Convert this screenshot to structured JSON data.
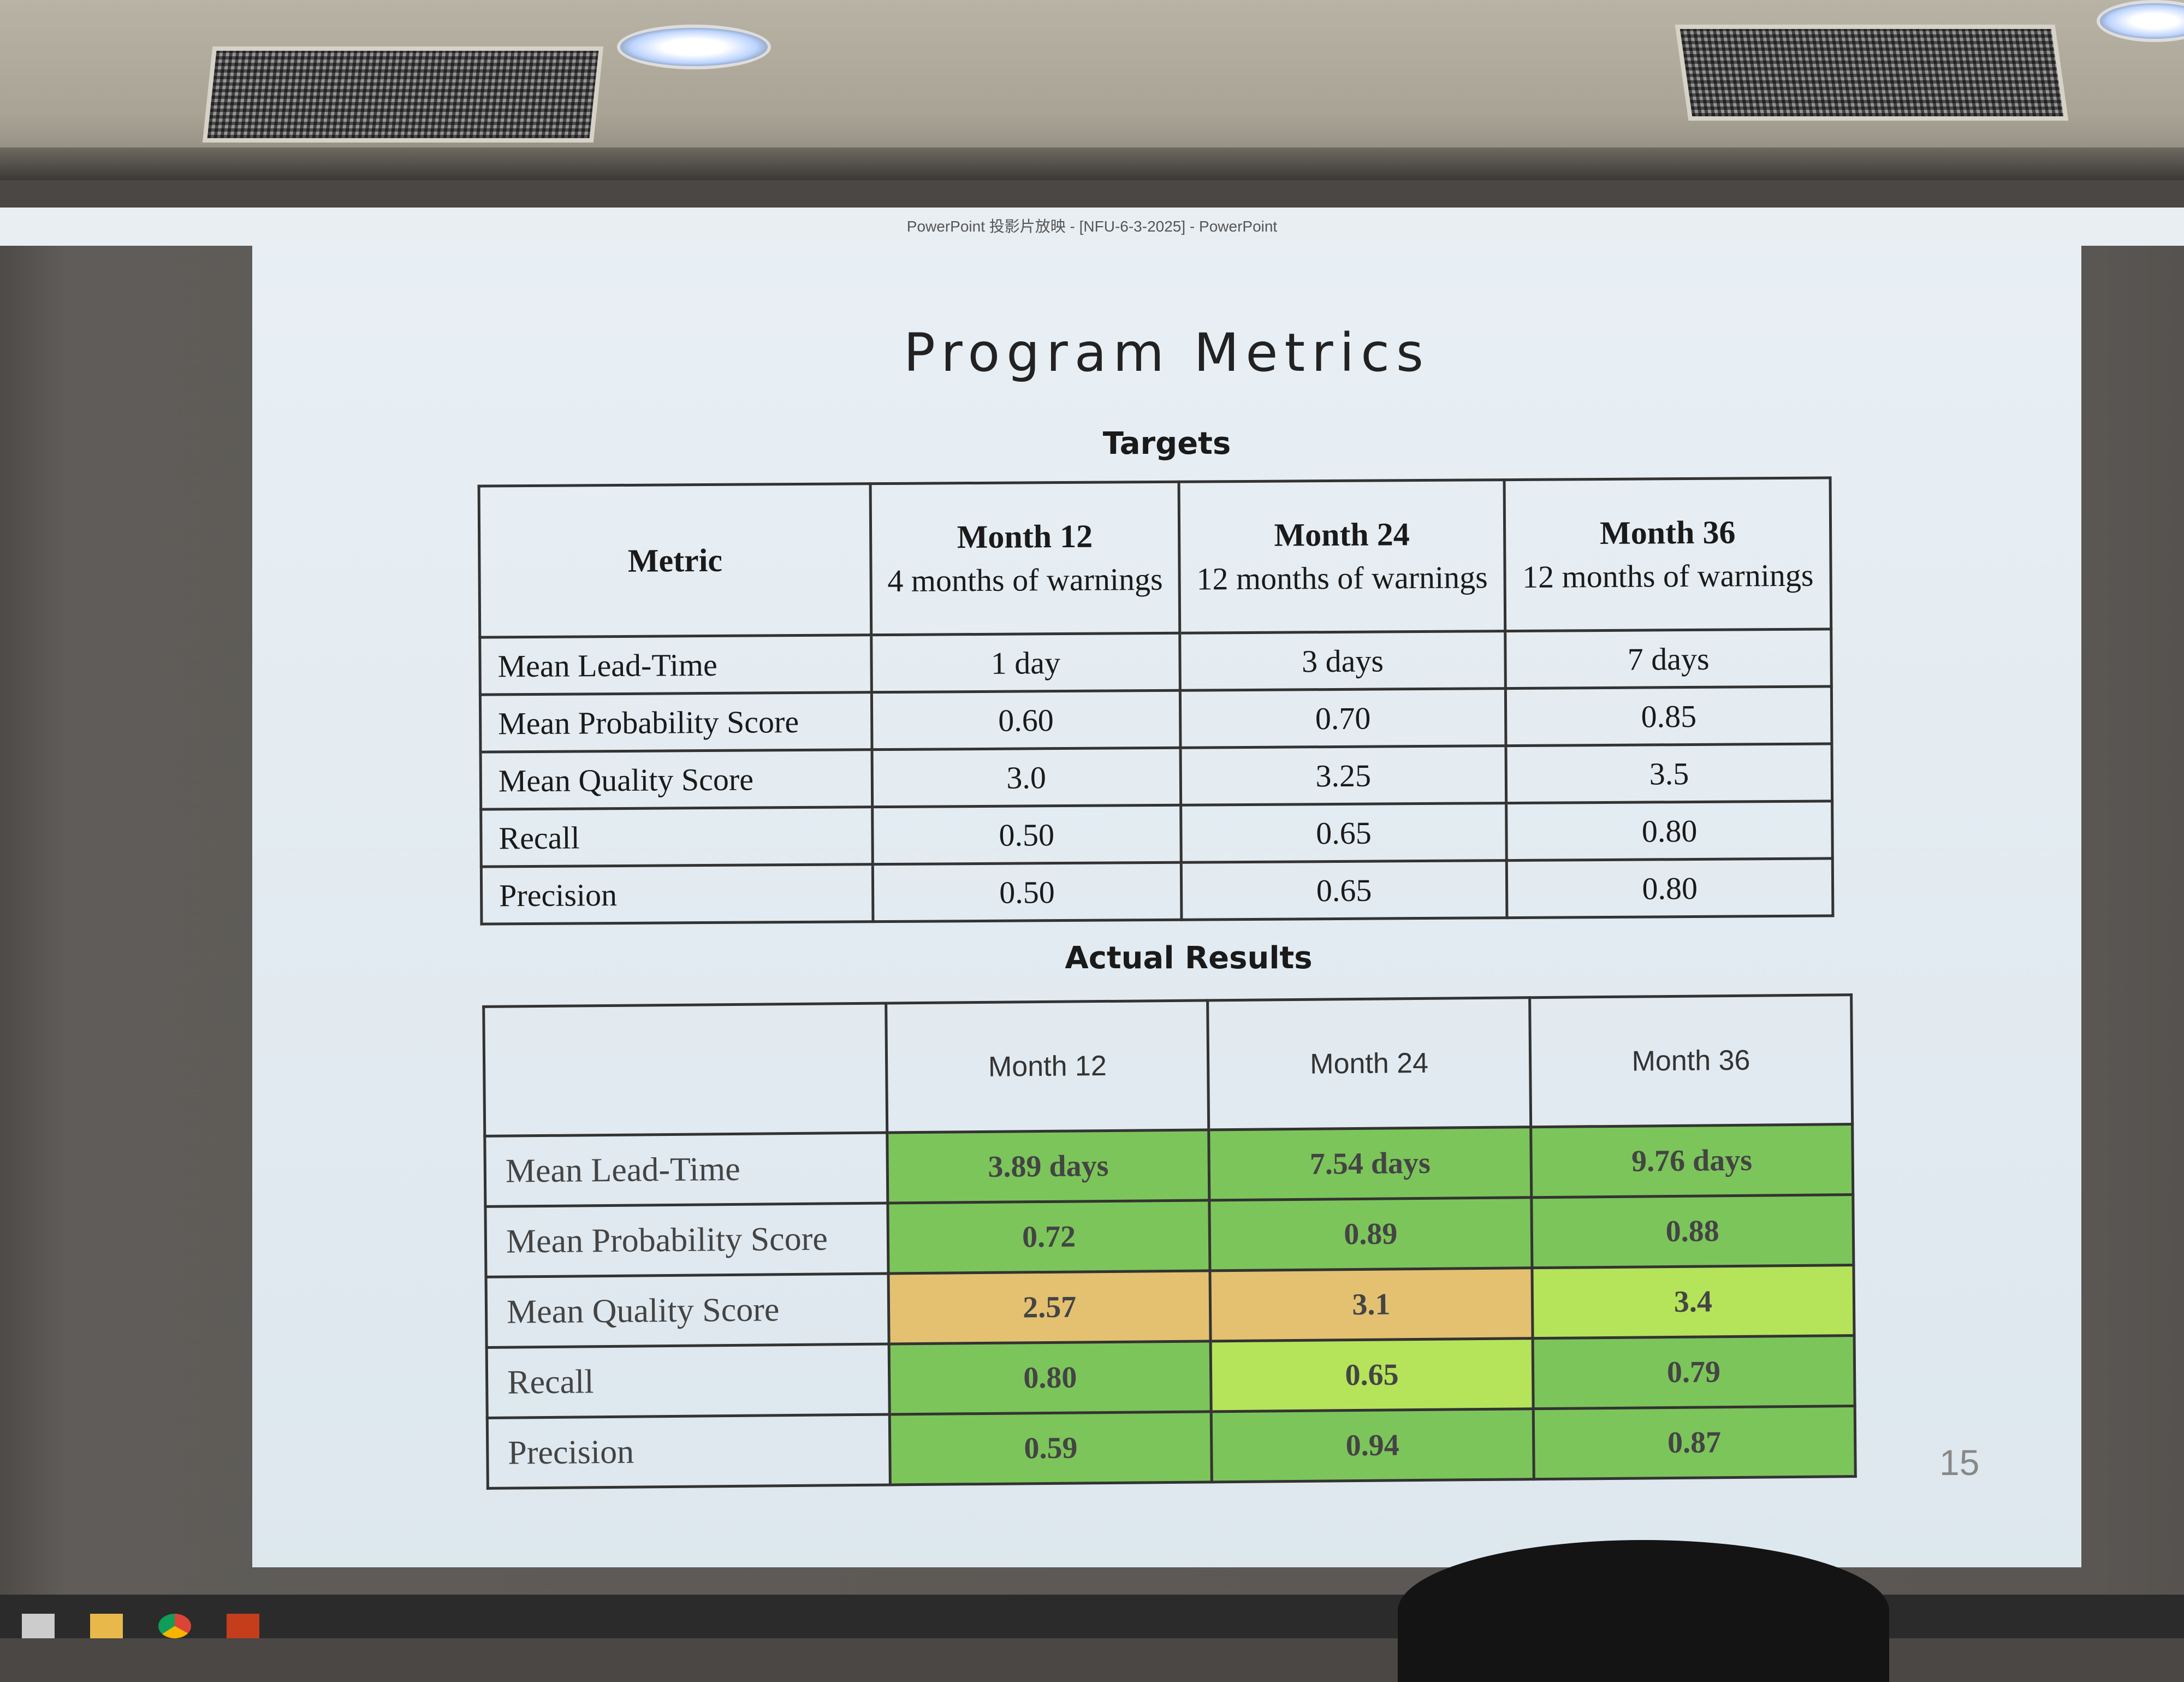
{
  "window": {
    "title": "PowerPoint 投影片放映 - [NFU-6-3-2025] - PowerPoint"
  },
  "slide": {
    "title": "Program Metrics",
    "number": "15",
    "targets": {
      "caption": "Targets",
      "header": {
        "metric": "Metric",
        "columns": [
          {
            "month": "Month 12",
            "sub": "4 months of warnings"
          },
          {
            "month": "Month 24",
            "sub": "12 months of warnings"
          },
          {
            "month": "Month 36",
            "sub": "12 months of warnings"
          }
        ]
      },
      "rows": [
        {
          "label": "Mean Lead-Time",
          "values": [
            "1 day",
            "3 days",
            "7 days"
          ]
        },
        {
          "label": "Mean Probability Score",
          "values": [
            "0.60",
            "0.70",
            "0.85"
          ]
        },
        {
          "label": "Mean Quality Score",
          "values": [
            "3.0",
            "3.25",
            "3.5"
          ]
        },
        {
          "label": "Recall",
          "values": [
            "0.50",
            "0.65",
            "0.80"
          ]
        },
        {
          "label": "Precision",
          "values": [
            "0.50",
            "0.65",
            "0.80"
          ]
        }
      ]
    },
    "actual": {
      "caption": "Actual Results",
      "columns": [
        "Month 12",
        "Month 24",
        "Month 36"
      ],
      "colors": {
        "green": "#7cc55a",
        "light_green": "#b5e35a",
        "orange": "#e3c170"
      },
      "rows": [
        {
          "label": "Mean Lead-Time",
          "values": [
            "3.89 days",
            "7.54 days",
            "9.76 days"
          ],
          "status": [
            "green",
            "green",
            "green"
          ]
        },
        {
          "label": "Mean Probability Score",
          "values": [
            "0.72",
            "0.89",
            "0.88"
          ],
          "status": [
            "green",
            "green",
            "green"
          ]
        },
        {
          "label": "Mean Quality Score",
          "values": [
            "2.57",
            "3.1",
            "3.4"
          ],
          "status": [
            "orange",
            "orange",
            "light_green"
          ]
        },
        {
          "label": "Recall",
          "values": [
            "0.80",
            "0.65",
            "0.79"
          ],
          "status": [
            "green",
            "light_green",
            "green"
          ]
        },
        {
          "label": "Precision",
          "values": [
            "0.59",
            "0.94",
            "0.87"
          ],
          "status": [
            "green",
            "green",
            "green"
          ]
        }
      ]
    }
  },
  "taskbar": {
    "icons": [
      "task-view-icon",
      "file-explorer-icon",
      "chrome-icon",
      "powerpoint-icon"
    ]
  }
}
